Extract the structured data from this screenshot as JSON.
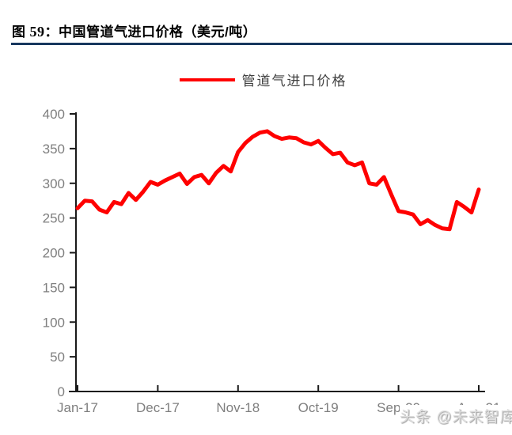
{
  "page": {
    "title": {
      "fig": "图",
      "num": "59",
      "sep": "：",
      "text": "中国管道气进口价格（美元/吨）"
    },
    "rule_color": "#17375E",
    "watermark": "头条 @未来智库"
  },
  "legend": {
    "label": "管道气进口价格",
    "swatch_color": "#FF0000"
  },
  "chart_data": {
    "type": "line",
    "title": "中国管道气进口价格（美元/吨）",
    "xlabel": "",
    "ylabel": "",
    "ylim": [
      0,
      400
    ],
    "y_ticks": [
      0,
      50,
      100,
      150,
      200,
      250,
      300,
      350,
      400
    ],
    "grid": false,
    "legend_position": "top-center",
    "axis_color": "#1a1a1a",
    "tick_label_color": "#7f7f7f",
    "x_start": "Jan-17",
    "x_freq": "monthly",
    "x_tick_indices": [
      0,
      11,
      22,
      33,
      44,
      55
    ],
    "x_tick_labels": [
      "Jan-17",
      "Dec-17",
      "Nov-18",
      "Oct-19",
      "Sep-20",
      "Aug-21"
    ],
    "series": [
      {
        "name": "管道气进口价格",
        "color": "#FF0000",
        "values": [
          264,
          275,
          274,
          262,
          258,
          273,
          270,
          286,
          276,
          288,
          302,
          298,
          304,
          309,
          314,
          299,
          309,
          312,
          300,
          315,
          325,
          317,
          345,
          358,
          367,
          373,
          375,
          368,
          364,
          366,
          365,
          359,
          356,
          361,
          351,
          342,
          344,
          330,
          326,
          330,
          300,
          298,
          309,
          284,
          260,
          258,
          255,
          241,
          247,
          240,
          235,
          234,
          273,
          266,
          258,
          291
        ]
      }
    ]
  }
}
